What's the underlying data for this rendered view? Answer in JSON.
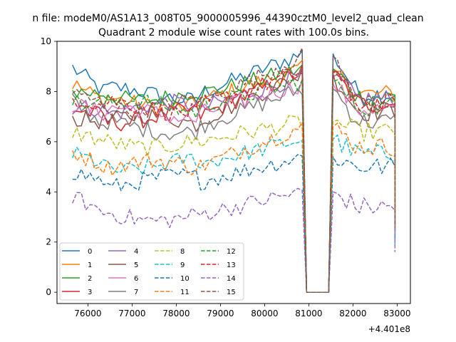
{
  "figure": {
    "suptitle": "n file: modeM0/AS1A13_008T05_9000005996_44390cztM0_level2_quad_clean",
    "title": "Quadrant 2 module wise count rates with 100.0s bins.",
    "offset_text": "+4.401e8"
  },
  "chart_data": {
    "type": "line",
    "title": "Quadrant 2 module wise count rates with 100.0s bins.",
    "xlabel": "",
    "ylabel": "",
    "x_offset": 440100000,
    "xlim": [
      75300,
      83300
    ],
    "ylim": [
      -0.45,
      10
    ],
    "xticks": [
      76000,
      77000,
      78000,
      79000,
      80000,
      81000,
      82000,
      83000
    ],
    "xtick_labels": [
      "76000",
      "77000",
      "78000",
      "79000",
      "80000",
      "81000",
      "82000",
      "83000"
    ],
    "yticks": [
      0,
      2,
      4,
      6,
      8,
      10
    ],
    "ytick_labels": [
      "0",
      "2",
      "4",
      "6",
      "8",
      "10"
    ],
    "grid": false,
    "legend_position": "lower-left",
    "legend_columns": 4,
    "x_start": 75650,
    "x_step": 100,
    "gap": {
      "start": 80950,
      "end": 81450,
      "value": 0
    },
    "series": [
      {
        "name": "0",
        "color": "#1f77b4",
        "dash": "solid",
        "level": 7.9,
        "end_level": 7.9,
        "start_value": 8.95,
        "peak": 9.5,
        "last": 2.2
      },
      {
        "name": "1",
        "color": "#ff7f0e",
        "dash": "solid",
        "level": 7.6,
        "end_level": 7.9,
        "start_value": 8.3,
        "peak": 8.9,
        "last": 2.5
      },
      {
        "name": "2",
        "color": "#2ca02c",
        "dash": "solid",
        "level": 7.9,
        "end_level": 7.8,
        "start_value": 8.0,
        "peak": 8.9,
        "last": 2.3
      },
      {
        "name": "3",
        "color": "#d62728",
        "dash": "solid",
        "level": 7.0,
        "end_level": 7.5,
        "start_value": 7.3,
        "peak": 8.8,
        "last": 2.6
      },
      {
        "name": "4",
        "color": "#9467bd",
        "dash": "solid",
        "level": 7.3,
        "end_level": 7.7,
        "start_value": 7.4,
        "peak": 8.6,
        "last": 2.4
      },
      {
        "name": "5",
        "color": "#8c564b",
        "dash": "solid",
        "level": 6.8,
        "end_level": 7.2,
        "start_value": 6.9,
        "peak": 8.7,
        "last": 2.5
      },
      {
        "name": "6",
        "color": "#e377c2",
        "dash": "solid",
        "level": 7.1,
        "end_level": 7.3,
        "start_value": 7.5,
        "peak": 8.3,
        "last": 2.4
      },
      {
        "name": "7",
        "color": "#7f7f7f",
        "dash": "solid",
        "level": 6.6,
        "end_level": 6.8,
        "start_value": 7.6,
        "peak": 8.1,
        "last": 2.3
      },
      {
        "name": "8",
        "color": "#bcbd22",
        "dash": "dashed",
        "level": 6.0,
        "end_level": 6.4,
        "start_value": 6.4,
        "peak": 6.8,
        "last": 2.0
      },
      {
        "name": "9",
        "color": "#17becf",
        "dash": "dashed",
        "level": 5.1,
        "end_level": 5.5,
        "start_value": 5.5,
        "peak": 6.1,
        "last": 1.9
      },
      {
        "name": "10",
        "color": "#1f77b4",
        "dash": "dashed",
        "level": 4.4,
        "end_level": 5.0,
        "start_value": 4.8,
        "peak": 5.4,
        "last": 2.1
      },
      {
        "name": "11",
        "color": "#ff7f0e",
        "dash": "dashed",
        "level": 5.0,
        "end_level": 5.8,
        "start_value": 5.6,
        "peak": 6.6,
        "last": 2.2
      },
      {
        "name": "12",
        "color": "#2ca02c",
        "dash": "dashed",
        "level": 7.4,
        "end_level": 7.4,
        "start_value": 7.6,
        "peak": 8.4,
        "last": 2.4
      },
      {
        "name": "13",
        "color": "#d62728",
        "dash": "dashed",
        "level": 7.4,
        "end_level": 7.5,
        "start_value": 7.8,
        "peak": 8.8,
        "last": 2.6
      },
      {
        "name": "14",
        "color": "#9467bd",
        "dash": "dashed",
        "level": 3.1,
        "end_level": 3.4,
        "start_value": 3.85,
        "peak": 4.0,
        "last": 1.6
      },
      {
        "name": "15",
        "color": "#8c564b",
        "dash": "dashed",
        "level": 7.5,
        "end_level": 7.6,
        "start_value": 7.9,
        "peak": 9.4,
        "last": 2.7
      }
    ]
  }
}
